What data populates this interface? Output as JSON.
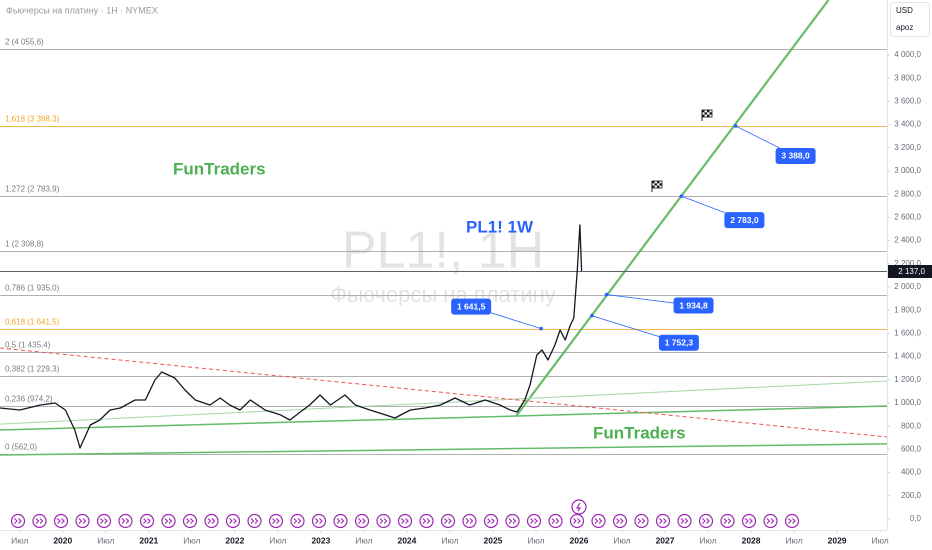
{
  "chart_data": {
    "type": "line",
    "title": "Фьючерсы на платину · 1H · NYMEX",
    "watermark": "PL1!, 1H",
    "watermark_subtitle": "Фьючерсы на платину",
    "currency": "USD",
    "scale_mode": "apoz",
    "annotations": [
      {
        "text": "FunTraders",
        "color": "#4caf50"
      },
      {
        "text": "FunTraders",
        "color": "#4caf50"
      },
      {
        "text": "PL1! 1W",
        "color": "#2962ff"
      }
    ],
    "series": [
      {
        "name": "PL1!",
        "color": "#131722",
        "x": [
          2019.27,
          2019.5,
          2019.74,
          2019.91,
          2020.03,
          2020.14,
          2020.2,
          2020.32,
          2020.43,
          2020.55,
          2020.67,
          2020.84,
          2020.96,
          2021.07,
          2021.15,
          2021.3,
          2021.42,
          2021.54,
          2021.71,
          2021.83,
          2021.94,
          2022.06,
          2022.18,
          2022.35,
          2022.53,
          2022.64,
          2022.76,
          2022.87,
          2022.99,
          2023.11,
          2023.28,
          2023.4,
          2023.57,
          2023.75,
          2023.86,
          2024.04,
          2024.21,
          2024.39,
          2024.56,
          2024.73,
          2024.91,
          2025.08,
          2025.2,
          2025.28,
          2025.37,
          2025.43,
          2025.51,
          2025.57,
          2025.64,
          2025.72,
          2025.78,
          2025.84,
          2025.9,
          2025.94,
          2025.98,
          2026.01,
          2026.03
        ],
        "values": [
          957,
          940,
          983,
          1000,
          940,
          767,
          612,
          810,
          853,
          940,
          957,
          1026,
          1026,
          1198,
          1267,
          1216,
          1112,
          1026,
          983,
          1043,
          983,
          940,
          1026,
          940,
          897,
          853,
          922,
          983,
          1069,
          983,
          1069,
          983,
          940,
          897,
          871,
          940,
          957,
          983,
          1043,
          983,
          1026,
          983,
          940,
          922,
          1026,
          1155,
          1414,
          1457,
          1371,
          1500,
          1629,
          1543,
          1672,
          1733,
          2147,
          2534,
          2137
        ]
      }
    ],
    "last_price": {
      "value": 2137,
      "label": "2 137,0"
    },
    "fib_levels": [
      {
        "label": "0 (562,0)",
        "value": 562,
        "color": "#9e9e9e"
      },
      {
        "label": "0,236 (974,2)",
        "value": 974.2,
        "color": "#9e9e9e"
      },
      {
        "label": "0,382 (1 229,3)",
        "value": 1229.3,
        "color": "#9e9e9e"
      },
      {
        "label": "0,5 (1 435,4)",
        "value": 1435.4,
        "color": "#9e9e9e"
      },
      {
        "label": "0,618 (1 641,5)",
        "value": 1641.5,
        "color": "#f5a623"
      },
      {
        "label": "0,786 (1 935,0)",
        "value": 1935.0,
        "color": "#9e9e9e"
      },
      {
        "label": "1 (2 308,8)",
        "value": 2308.8,
        "color": "#9e9e9e"
      },
      {
        "label": "1,272 (2 783,9)",
        "value": 2783.9,
        "color": "#9e9e9e"
      },
      {
        "label": "1,618 (3 388,3)",
        "value": 3388.3,
        "color": "#f5a623"
      },
      {
        "label": "2 (4 055,6)",
        "value": 4055.6,
        "color": "#9e9e9e"
      }
    ],
    "callouts": [
      {
        "label": "1 641,5",
        "value": 1641.5,
        "x": 2025.56
      },
      {
        "label": "1 934,8",
        "value": 1934.8,
        "x": 2026.32
      },
      {
        "label": "1 752,3",
        "value": 1752.3,
        "x": 2026.15
      },
      {
        "label": "2 783,0",
        "value": 2783.0,
        "x": 2027.19
      },
      {
        "label": "3 388,0",
        "value": 3388.0,
        "x": 2027.82
      }
    ],
    "trendlines": [
      {
        "x": [
          2025.27,
          2028.9
        ],
        "values": [
          888,
          4474
        ],
        "color": "#66bb6a",
        "width": 2.2,
        "dashed": false
      },
      {
        "x": [
          2019.27,
          2029.58
        ],
        "values": [
          552,
          647
        ],
        "color": "#66bb6a",
        "width": 1.5,
        "dashed": false
      },
      {
        "x": [
          2019.27,
          2029.58
        ],
        "values": [
          767,
          974
        ],
        "color": "#66bb6a",
        "width": 1.5,
        "dashed": false
      },
      {
        "x": [
          2019.27,
          2029.58
        ],
        "values": [
          818,
          1190
        ],
        "color": "#a5d6a7",
        "width": 1,
        "dashed": false
      },
      {
        "x": [
          2019.27,
          2029.58
        ],
        "values": [
          1474,
          707
        ],
        "color": "#ef5350",
        "width": 1,
        "dashed": true
      }
    ],
    "xlim": [
      2019.27,
      2029.58
    ],
    "ylim": [
      0,
      4474
    ],
    "grid": false,
    "xticks": [
      {
        "value": 2019.5,
        "label": "Июл"
      },
      2020,
      {
        "value": 2020.5,
        "label": "Июл"
      },
      2021,
      {
        "value": 2021.5,
        "label": "Июл"
      },
      2022,
      {
        "value": 2022.5,
        "label": "Июл"
      },
      2023,
      {
        "value": 2023.5,
        "label": "Июл"
      },
      2024,
      {
        "value": 2024.5,
        "label": "Июл"
      },
      2025,
      {
        "value": 2025.5,
        "label": "Июл"
      },
      2026,
      {
        "value": 2026.5,
        "label": "Июл"
      },
      2027,
      {
        "value": 2027.5,
        "label": "Июл"
      },
      2028,
      {
        "value": 2028.5,
        "label": "Июл"
      },
      2029,
      {
        "value": 2029.5,
        "label": "Июл"
      }
    ],
    "yticks": [
      {
        "value": 0,
        "label": "0,0"
      },
      {
        "value": 200,
        "label": "200,0"
      },
      {
        "value": 400,
        "label": "400,0"
      },
      {
        "value": 600,
        "label": "600,0"
      },
      {
        "value": 800,
        "label": "800,0"
      },
      {
        "value": 1000,
        "label": "1 000,0"
      },
      {
        "value": 1200,
        "label": "1 200,0"
      },
      {
        "value": 1400,
        "label": "1 400,0"
      },
      {
        "value": 1600,
        "label": "1 600,0"
      },
      {
        "value": 1800,
        "label": "1 800,0"
      },
      {
        "value": 2000,
        "label": "2 000,0"
      },
      {
        "value": 2200,
        "label": "2 200,0"
      },
      {
        "value": 2400,
        "label": "2 400,0"
      },
      {
        "value": 2600,
        "label": "2 600,0"
      },
      {
        "value": 2800,
        "label": "2 800,0"
      },
      {
        "value": 3000,
        "label": "3 000,0"
      },
      {
        "value": 3200,
        "label": "3 200,0"
      },
      {
        "value": 3400,
        "label": "3 400,0"
      },
      {
        "value": 3600,
        "label": "3 600,0"
      },
      {
        "value": 3800,
        "label": "3 800,0"
      },
      {
        "value": 4000,
        "label": "4 000,0"
      }
    ]
  }
}
